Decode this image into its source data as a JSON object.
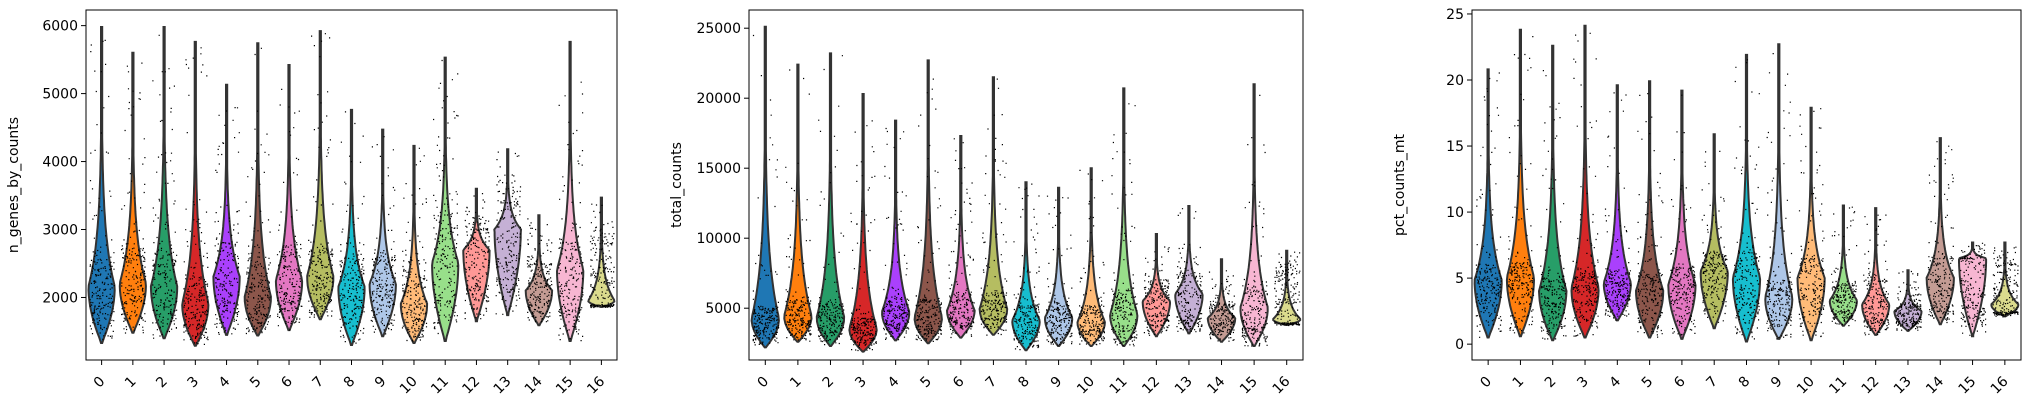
{
  "chart_data": [
    {
      "type": "violin",
      "ylabel": "n_genes_by_counts",
      "categories": [
        "0",
        "1",
        "2",
        "3",
        "4",
        "5",
        "6",
        "7",
        "8",
        "9",
        "10",
        "11",
        "12",
        "13",
        "14",
        "15",
        "16"
      ],
      "ylim": [
        1080,
        6230
      ],
      "yticks": [
        2000,
        3000,
        4000,
        5000,
        6000
      ],
      "ytick_labels": [
        "2000",
        "3000",
        "4000",
        "5000",
        "6000"
      ],
      "series": [
        {
          "min": 1330,
          "q1": 1860,
          "median": 2200,
          "q3": 2520,
          "max": 5980,
          "mode": 2150
        },
        {
          "min": 1480,
          "q1": 1950,
          "median": 2300,
          "q3": 2700,
          "max": 5600,
          "mode": 2200
        },
        {
          "min": 1400,
          "q1": 1900,
          "median": 2250,
          "q3": 2650,
          "max": 5980,
          "mode": 2150
        },
        {
          "min": 1290,
          "q1": 1680,
          "median": 1950,
          "q3": 2300,
          "max": 5760,
          "mode": 1900
        },
        {
          "min": 1450,
          "q1": 1950,
          "median": 2350,
          "q3": 2800,
          "max": 5130,
          "mode": 2300
        },
        {
          "min": 1440,
          "q1": 1800,
          "median": 2100,
          "q3": 2600,
          "max": 5740,
          "mode": 2000
        },
        {
          "min": 1520,
          "q1": 1950,
          "median": 2300,
          "q3": 2750,
          "max": 5420,
          "mode": 2250
        },
        {
          "min": 1680,
          "q1": 2050,
          "median": 2350,
          "q3": 2700,
          "max": 5920,
          "mode": 2300
        },
        {
          "min": 1300,
          "q1": 1900,
          "median": 2200,
          "q3": 2550,
          "max": 4760,
          "mode": 2150
        },
        {
          "min": 1430,
          "q1": 1950,
          "median": 2250,
          "q3": 2600,
          "max": 4470,
          "mode": 2200
        },
        {
          "min": 1330,
          "q1": 1700,
          "median": 2000,
          "q3": 2400,
          "max": 4230,
          "mode": 1900
        },
        {
          "min": 1360,
          "q1": 2100,
          "median": 2600,
          "q3": 3200,
          "max": 5530,
          "mode": 2500
        },
        {
          "min": 1650,
          "q1": 2200,
          "median": 2600,
          "q3": 3000,
          "max": 3600,
          "mode": 2700
        },
        {
          "min": 1740,
          "q1": 2300,
          "median": 2800,
          "q3": 3400,
          "max": 4180,
          "mode": 3000
        },
        {
          "min": 1590,
          "q1": 1900,
          "median": 2100,
          "q3": 2500,
          "max": 3210,
          "mode": 2100
        },
        {
          "min": 1360,
          "q1": 1900,
          "median": 2300,
          "q3": 2800,
          "max": 5760,
          "mode": 2400
        },
        {
          "min": 1860,
          "q1": 1900,
          "median": 2200,
          "q3": 2800,
          "max": 3470,
          "mode": 1950
        }
      ]
    },
    {
      "type": "violin",
      "ylabel": "total_counts",
      "categories": [
        "0",
        "1",
        "2",
        "3",
        "4",
        "5",
        "6",
        "7",
        "8",
        "9",
        "10",
        "11",
        "12",
        "13",
        "14",
        "15",
        "16"
      ],
      "ylim": [
        1300,
        26300
      ],
      "yticks": [
        5000,
        10000,
        15000,
        20000,
        25000
      ],
      "ytick_labels": [
        "5000",
        "10000",
        "15000",
        "20000",
        "25000"
      ],
      "series": [
        {
          "min": 2200,
          "q1": 3600,
          "median": 4200,
          "q3": 5000,
          "max": 25100,
          "mode": 4200
        },
        {
          "min": 2600,
          "q1": 3900,
          "median": 4600,
          "q3": 5600,
          "max": 22400,
          "mode": 4400
        },
        {
          "min": 2300,
          "q1": 3700,
          "median": 4400,
          "q3": 5400,
          "max": 23200,
          "mode": 4300
        },
        {
          "min": 1900,
          "q1": 3000,
          "median": 3600,
          "q3": 4300,
          "max": 20300,
          "mode": 3500
        },
        {
          "min": 2700,
          "q1": 4000,
          "median": 4800,
          "q3": 5800,
          "max": 18400,
          "mode": 4700
        },
        {
          "min": 2500,
          "q1": 3700,
          "median": 4500,
          "q3": 5600,
          "max": 22700,
          "mode": 4300
        },
        {
          "min": 2900,
          "q1": 4200,
          "median": 5000,
          "q3": 6000,
          "max": 17300,
          "mode": 4800
        },
        {
          "min": 3100,
          "q1": 4300,
          "median": 5100,
          "q3": 6100,
          "max": 21500,
          "mode": 4900
        },
        {
          "min": 2000,
          "q1": 3500,
          "median": 4300,
          "q3": 5200,
          "max": 14000,
          "mode": 4100
        },
        {
          "min": 2300,
          "q1": 3700,
          "median": 4500,
          "q3": 5400,
          "max": 13600,
          "mode": 4300
        },
        {
          "min": 2300,
          "q1": 3500,
          "median": 4200,
          "q3": 5200,
          "max": 15000,
          "mode": 4000
        },
        {
          "min": 2300,
          "q1": 3800,
          "median": 4800,
          "q3": 6400,
          "max": 20700,
          "mode": 4500
        },
        {
          "min": 3000,
          "q1": 4500,
          "median": 5700,
          "q3": 7000,
          "max": 10300,
          "mode": 5500
        },
        {
          "min": 3200,
          "q1": 4500,
          "median": 5700,
          "q3": 7500,
          "max": 12300,
          "mode": 6000
        },
        {
          "min": 2600,
          "q1": 3800,
          "median": 4500,
          "q3": 5300,
          "max": 8500,
          "mode": 4300
        },
        {
          "min": 2300,
          "q1": 3800,
          "median": 5000,
          "q3": 6500,
          "max": 21000,
          "mode": 5000
        },
        {
          "min": 3800,
          "q1": 4000,
          "median": 5500,
          "q3": 7500,
          "max": 9100,
          "mode": 4200
        }
      ]
    },
    {
      "type": "violin",
      "ylabel": "pct_counts_mt",
      "categories": [
        "0",
        "1",
        "2",
        "3",
        "4",
        "5",
        "6",
        "7",
        "8",
        "9",
        "10",
        "11",
        "12",
        "13",
        "14",
        "15",
        "16"
      ],
      "ylim": [
        -1.2,
        25.3
      ],
      "yticks": [
        0,
        5,
        10,
        15,
        20,
        25
      ],
      "ytick_labels": [
        "0",
        "5",
        "10",
        "15",
        "20",
        "25"
      ],
      "series": [
        {
          "min": 0.5,
          "q1": 3.5,
          "median": 4.8,
          "q3": 6.0,
          "max": 20.8,
          "mode": 4.8
        },
        {
          "min": 0.6,
          "q1": 3.8,
          "median": 5.0,
          "q3": 6.2,
          "max": 23.8,
          "mode": 5.0
        },
        {
          "min": 0.3,
          "q1": 2.8,
          "median": 4.0,
          "q3": 5.2,
          "max": 22.6,
          "mode": 4.0
        },
        {
          "min": 0.5,
          "q1": 3.2,
          "median": 4.3,
          "q3": 5.6,
          "max": 24.1,
          "mode": 4.2
        },
        {
          "min": 1.8,
          "q1": 3.6,
          "median": 4.6,
          "q3": 5.6,
          "max": 19.6,
          "mode": 4.6
        },
        {
          "min": 0.5,
          "q1": 2.8,
          "median": 4.0,
          "q3": 5.3,
          "max": 19.9,
          "mode": 4.0
        },
        {
          "min": 0.4,
          "q1": 3.2,
          "median": 4.5,
          "q3": 5.8,
          "max": 19.2,
          "mode": 4.5
        },
        {
          "min": 1.2,
          "q1": 4.2,
          "median": 5.4,
          "q3": 6.8,
          "max": 15.9,
          "mode": 5.5
        },
        {
          "min": 0.2,
          "q1": 3.5,
          "median": 5.2,
          "q3": 7.0,
          "max": 21.9,
          "mode": 5.0
        },
        {
          "min": 0.4,
          "q1": 2.6,
          "median": 3.6,
          "q3": 4.8,
          "max": 22.7,
          "mode": 3.5
        },
        {
          "min": 0.3,
          "q1": 3.5,
          "median": 5.0,
          "q3": 6.5,
          "max": 17.9,
          "mode": 5.0
        },
        {
          "min": 1.4,
          "q1": 2.6,
          "median": 3.5,
          "q3": 4.5,
          "max": 10.5,
          "mode": 3.3
        },
        {
          "min": 0.7,
          "q1": 2.0,
          "median": 3.3,
          "q3": 4.8,
          "max": 10.3,
          "mode": 3.0
        },
        {
          "min": 1.0,
          "q1": 1.8,
          "median": 2.3,
          "q3": 3.0,
          "max": 5.6,
          "mode": 2.5
        },
        {
          "min": 1.5,
          "q1": 3.0,
          "median": 4.5,
          "q3": 6.5,
          "max": 15.6,
          "mode": 5.0
        },
        {
          "min": 0.6,
          "q1": 2.5,
          "median": 4.5,
          "q3": 6.5,
          "max": 7.7,
          "mode": 6.5
        },
        {
          "min": 2.1,
          "q1": 2.5,
          "median": 4.0,
          "q3": 6.0,
          "max": 7.7,
          "mode": 3.0
        }
      ]
    }
  ],
  "palette": [
    "#1f77b4",
    "#ff7f0e",
    "#279e68",
    "#d62728",
    "#aa40fc",
    "#8c564b",
    "#e377c2",
    "#b5bd61",
    "#17becf",
    "#aec7e8",
    "#ffbb78",
    "#98df8a",
    "#ff9896",
    "#c5b0d5",
    "#c49c94",
    "#f7b6d2",
    "#dbdb8d"
  ]
}
